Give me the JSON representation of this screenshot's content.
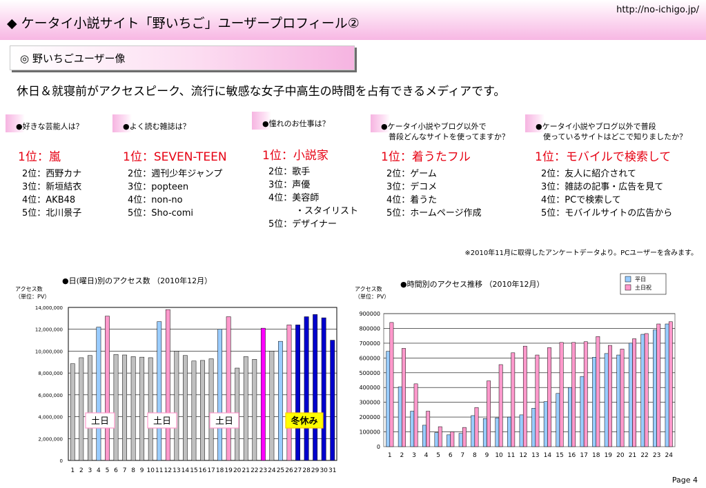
{
  "header": {
    "url": "http://no-ichigo.jp/",
    "title": "◆ ケータイ小説サイト「野いちご」ユーザープロフィール②"
  },
  "section": {
    "label": "◎ 野いちごユーザー像"
  },
  "headline": "休日＆就寝前がアクセスピーク、流行に敏感な女子中高生の時間を占有できるメディアです。",
  "surveys": [
    {
      "question": [
        "●好きな芸能人は？"
      ],
      "first": "1位：嵐",
      "ranks": [
        "2位：西野カナ",
        "3位：新垣結衣",
        "4位：AKB48",
        "5位：北川景子"
      ]
    },
    {
      "question": [
        "●よく読む雑誌は？"
      ],
      "first": "1位：SEVEN-TEEN",
      "ranks": [
        "2位：週刊少年ジャンプ",
        "3位：popteen",
        "4位：non-no",
        "5位：Sho-comi"
      ]
    },
    {
      "question": [
        "●憧れのお仕事は？"
      ],
      "first": "1位：小説家",
      "ranks": [
        "2位：歌手",
        "3位：声優",
        "4位：美容師",
        "　　　・スタイリスト",
        "5位：デザイナー"
      ]
    },
    {
      "question": [
        "●ケータイ小説やブログ以外で",
        "　普段どんなサイトを使ってますか？"
      ],
      "first": "1位：着うたフル",
      "ranks": [
        "2位：ゲーム",
        "3位：デコメ",
        "4位：着うた",
        "5位：ホームページ作成"
      ]
    },
    {
      "question": [
        "●ケータイ小説やブログ以外で普段",
        "　使っているサイトはどこで知りましたか？"
      ],
      "first": "1位：モバイルで検索して",
      "ranks": [
        "2位：友人に紹介されて",
        "3位：雑誌の記事・広告を見て",
        "4位：PCで検索して",
        "5位：モバイルサイトの広告から"
      ]
    }
  ],
  "note": "※2010年11月に取得したアンケートデータより。PCユーザーを含みます。",
  "page": "Page 4",
  "chart_data": [
    {
      "type": "bar",
      "title": "●日(曜日)別のアクセス数 （2010年12月）",
      "ylabel": "アクセス数\n（単位：PV）",
      "ylim": [
        0,
        14000000
      ],
      "yticks": [
        "0",
        "2,000,000",
        "4,000,000",
        "6,000,000",
        "8,000,000",
        "10,000,000",
        "12,000,000",
        "14,000,000"
      ],
      "categories": [
        "1",
        "2",
        "3",
        "4",
        "5",
        "6",
        "7",
        "8",
        "9",
        "10",
        "11",
        "12",
        "13",
        "14",
        "15",
        "16",
        "17",
        "18",
        "19",
        "20",
        "21",
        "22",
        "23",
        "24",
        "25",
        "26",
        "27",
        "28",
        "29",
        "30",
        "31"
      ],
      "values": [
        8850000,
        9400000,
        9600000,
        12200000,
        13200000,
        9700000,
        9650000,
        9500000,
        9450000,
        9400000,
        12700000,
        13800000,
        10000000,
        9600000,
        9100000,
        9150000,
        9300000,
        12000000,
        13150000,
        8450000,
        9500000,
        9250000,
        12100000,
        10000000,
        10900000,
        12400000,
        12400000,
        13150000,
        13350000,
        13050000,
        11000000
      ],
      "bar_colors": [
        "#c0c0c0",
        "#c0c0c0",
        "#c0c0c0",
        "#99ccff",
        "#ff99cc",
        "#c0c0c0",
        "#c0c0c0",
        "#c0c0c0",
        "#c0c0c0",
        "#c0c0c0",
        "#99ccff",
        "#ff99cc",
        "#c0c0c0",
        "#c0c0c0",
        "#c0c0c0",
        "#c0c0c0",
        "#c0c0c0",
        "#99ccff",
        "#ff99cc",
        "#c0c0c0",
        "#c0c0c0",
        "#c0c0c0",
        "#ff00ff",
        "#c0c0c0",
        "#99ccff",
        "#ff99cc",
        "#0000cc",
        "#0000cc",
        "#0000cc",
        "#0000cc",
        "#0000cc"
      ],
      "annotations": [
        "土日",
        "土日",
        "土日",
        "冬休み"
      ]
    },
    {
      "type": "bar",
      "title": "●時間別のアクセス推移 （2010年12月）",
      "ylabel": "アクセス数\n（単位：PV）",
      "ylim": [
        0,
        900000
      ],
      "yticks": [
        "0",
        "100000",
        "200000",
        "300000",
        "400000",
        "500000",
        "600000",
        "700000",
        "800000",
        "900000"
      ],
      "categories": [
        "1",
        "2",
        "3",
        "4",
        "5",
        "6",
        "7",
        "8",
        "9",
        "10",
        "11",
        "12",
        "13",
        "14",
        "15",
        "16",
        "17",
        "18",
        "19",
        "20",
        "21",
        "22",
        "23",
        "24"
      ],
      "series": [
        {
          "name": "平日",
          "color": "#99ccff",
          "values": [
            645000,
            405000,
            240000,
            145000,
            95000,
            80000,
            90000,
            210000,
            190000,
            195000,
            200000,
            215000,
            260000,
            305000,
            360000,
            400000,
            475000,
            605000,
            630000,
            620000,
            700000,
            760000,
            790000,
            830000
          ]
        },
        {
          "name": "土日祝",
          "color": "#ff99cc",
          "values": [
            840000,
            665000,
            425000,
            240000,
            135000,
            100000,
            130000,
            265000,
            445000,
            555000,
            635000,
            680000,
            620000,
            670000,
            705000,
            705000,
            710000,
            745000,
            685000,
            660000,
            730000,
            765000,
            830000,
            845000
          ]
        }
      ]
    }
  ]
}
